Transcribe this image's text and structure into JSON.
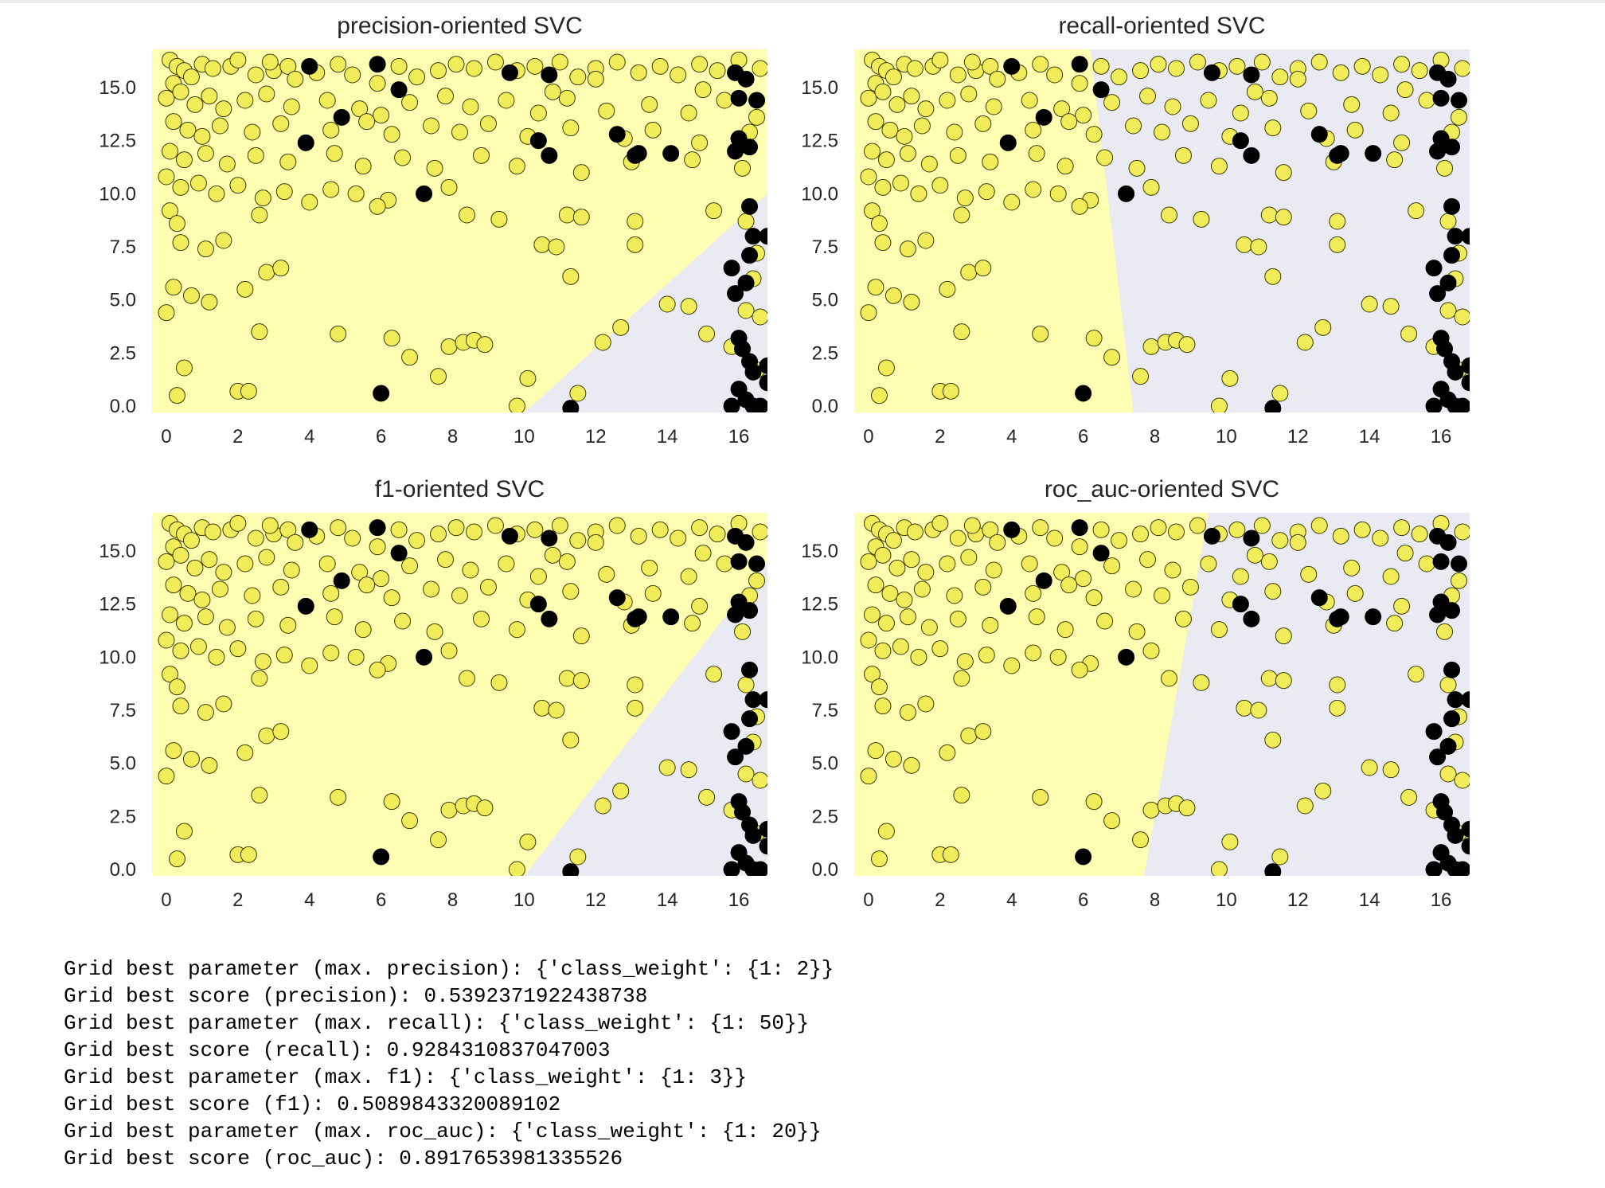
{
  "colors": {
    "positive_region": "#ffffb3",
    "negative_region": "#eaeaf2",
    "yellow_point": "#f0ec5a",
    "black_point": "#000000"
  },
  "chart_data": [
    {
      "type": "scatter",
      "title": "precision-oriented SVC",
      "xlim": [
        -0.4,
        16.8
      ],
      "ylim": [
        -0.3,
        16.8
      ],
      "xticks": [
        0,
        2,
        4,
        6,
        8,
        10,
        12,
        14,
        16
      ],
      "yticks": [
        0.0,
        2.5,
        5.0,
        7.5,
        10.0,
        12.5,
        15.0
      ],
      "grid": false,
      "decision_boundary": [
        [
          10.0,
          -0.3
        ],
        [
          16.8,
          10.0
        ]
      ]
    },
    {
      "type": "scatter",
      "title": "recall-oriented SVC",
      "xlim": [
        -0.4,
        16.8
      ],
      "ylim": [
        -0.3,
        16.8
      ],
      "xticks": [
        0,
        2,
        4,
        6,
        8,
        10,
        12,
        14,
        16
      ],
      "yticks": [
        0.0,
        2.5,
        5.0,
        7.5,
        10.0,
        12.5,
        15.0
      ],
      "grid": false,
      "decision_boundary": [
        [
          7.4,
          -0.3
        ],
        [
          6.2,
          16.8
        ]
      ]
    },
    {
      "type": "scatter",
      "title": "f1-oriented SVC",
      "xlim": [
        -0.4,
        16.8
      ],
      "ylim": [
        -0.3,
        16.8
      ],
      "xticks": [
        0,
        2,
        4,
        6,
        8,
        10,
        12,
        14,
        16
      ],
      "yticks": [
        0.0,
        2.5,
        5.0,
        7.5,
        10.0,
        12.5,
        15.0
      ],
      "grid": false,
      "decision_boundary": [
        [
          10.0,
          -0.3
        ],
        [
          16.8,
          14.5
        ]
      ]
    },
    {
      "type": "scatter",
      "title": "roc_auc-oriented SVC",
      "xlim": [
        -0.4,
        16.8
      ],
      "ylim": [
        -0.3,
        16.8
      ],
      "xticks": [
        0,
        2,
        4,
        6,
        8,
        10,
        12,
        14,
        16
      ],
      "yticks": [
        0.0,
        2.5,
        5.0,
        7.5,
        10.0,
        12.5,
        15.0
      ],
      "grid": false,
      "decision_boundary": [
        [
          7.7,
          -0.3
        ],
        [
          9.5,
          16.8
        ]
      ]
    }
  ],
  "scatter_points": {
    "yellow": [
      [
        0.1,
        16.3
      ],
      [
        0.3,
        16.0
      ],
      [
        0.5,
        15.8
      ],
      [
        0.2,
        15.2
      ],
      [
        0.7,
        15.5
      ],
      [
        1.0,
        16.1
      ],
      [
        1.3,
        15.9
      ],
      [
        1.8,
        16.0
      ],
      [
        2.0,
        16.3
      ],
      [
        2.5,
        15.6
      ],
      [
        3.0,
        15.8
      ],
      [
        3.4,
        16.0
      ],
      [
        4.2,
        15.7
      ],
      [
        4.8,
        16.1
      ],
      [
        5.2,
        15.6
      ],
      [
        6.5,
        16.0
      ],
      [
        7.0,
        15.5
      ],
      [
        7.6,
        15.8
      ],
      [
        8.1,
        16.1
      ],
      [
        8.6,
        15.9
      ],
      [
        9.2,
        16.2
      ],
      [
        9.8,
        15.8
      ],
      [
        10.3,
        16.0
      ],
      [
        11.0,
        16.2
      ],
      [
        11.5,
        15.5
      ],
      [
        12.0,
        15.9
      ],
      [
        12.6,
        16.2
      ],
      [
        13.2,
        15.7
      ],
      [
        13.8,
        16.0
      ],
      [
        14.3,
        15.6
      ],
      [
        14.9,
        16.1
      ],
      [
        15.4,
        15.8
      ],
      [
        16.0,
        16.3
      ],
      [
        16.6,
        15.9
      ],
      [
        0.0,
        14.5
      ],
      [
        0.4,
        14.8
      ],
      [
        0.8,
        14.2
      ],
      [
        1.2,
        14.6
      ],
      [
        1.6,
        14.0
      ],
      [
        2.2,
        14.4
      ],
      [
        2.8,
        14.7
      ],
      [
        3.5,
        14.1
      ],
      [
        4.5,
        14.4
      ],
      [
        5.4,
        14.0
      ],
      [
        6.0,
        13.7
      ],
      [
        6.8,
        14.3
      ],
      [
        7.8,
        14.6
      ],
      [
        8.5,
        14.1
      ],
      [
        9.5,
        14.4
      ],
      [
        10.4,
        13.8
      ],
      [
        11.2,
        14.5
      ],
      [
        12.3,
        13.9
      ],
      [
        13.5,
        14.2
      ],
      [
        14.6,
        13.8
      ],
      [
        15.6,
        14.4
      ],
      [
        16.5,
        13.6
      ],
      [
        0.2,
        13.4
      ],
      [
        0.6,
        13.0
      ],
      [
        1.0,
        12.7
      ],
      [
        1.5,
        13.2
      ],
      [
        2.4,
        12.9
      ],
      [
        3.2,
        13.3
      ],
      [
        4.6,
        13.0
      ],
      [
        5.6,
        13.4
      ],
      [
        6.3,
        12.8
      ],
      [
        7.4,
        13.2
      ],
      [
        8.2,
        12.9
      ],
      [
        9.0,
        13.3
      ],
      [
        10.1,
        12.7
      ],
      [
        11.3,
        13.1
      ],
      [
        12.8,
        12.6
      ],
      [
        13.6,
        13.0
      ],
      [
        14.9,
        12.4
      ],
      [
        16.3,
        12.9
      ],
      [
        0.1,
        12.0
      ],
      [
        0.5,
        11.6
      ],
      [
        1.1,
        11.9
      ],
      [
        1.7,
        11.4
      ],
      [
        2.5,
        11.8
      ],
      [
        3.4,
        11.5
      ],
      [
        4.7,
        11.9
      ],
      [
        5.5,
        11.3
      ],
      [
        6.6,
        11.7
      ],
      [
        7.5,
        11.2
      ],
      [
        8.8,
        11.8
      ],
      [
        9.8,
        11.3
      ],
      [
        11.6,
        11.0
      ],
      [
        13.0,
        11.5
      ],
      [
        14.7,
        11.6
      ],
      [
        16.1,
        11.2
      ],
      [
        0.0,
        10.8
      ],
      [
        0.4,
        10.3
      ],
      [
        0.9,
        10.5
      ],
      [
        1.4,
        10.0
      ],
      [
        2.0,
        10.4
      ],
      [
        2.7,
        9.8
      ],
      [
        3.3,
        10.1
      ],
      [
        4.0,
        9.6
      ],
      [
        4.6,
        10.2
      ],
      [
        5.3,
        10.0
      ],
      [
        6.2,
        9.7
      ],
      [
        7.9,
        10.3
      ],
      [
        0.1,
        9.2
      ],
      [
        0.3,
        8.6
      ],
      [
        2.6,
        9.0
      ],
      [
        5.9,
        9.4
      ],
      [
        8.4,
        9.0
      ],
      [
        9.3,
        8.8
      ],
      [
        11.2,
        9.0
      ],
      [
        11.6,
        8.9
      ],
      [
        13.1,
        8.7
      ],
      [
        15.3,
        9.2
      ],
      [
        16.2,
        8.7
      ],
      [
        0.4,
        7.7
      ],
      [
        1.1,
        7.4
      ],
      [
        1.6,
        7.8
      ],
      [
        10.5,
        7.6
      ],
      [
        10.9,
        7.5
      ],
      [
        13.1,
        7.6
      ],
      [
        16.5,
        7.2
      ],
      [
        0.2,
        5.6
      ],
      [
        0.7,
        5.2
      ],
      [
        1.2,
        4.9
      ],
      [
        2.2,
        5.5
      ],
      [
        2.8,
        6.3
      ],
      [
        3.2,
        6.5
      ],
      [
        11.3,
        6.1
      ],
      [
        14.0,
        4.8
      ],
      [
        14.6,
        4.7
      ],
      [
        16.2,
        4.5
      ],
      [
        0.0,
        4.4
      ],
      [
        0.5,
        1.8
      ],
      [
        0.3,
        0.5
      ],
      [
        2.0,
        0.7
      ],
      [
        2.3,
        0.7
      ],
      [
        2.6,
        3.5
      ],
      [
        4.8,
        3.4
      ],
      [
        6.3,
        3.2
      ],
      [
        6.8,
        2.3
      ],
      [
        7.6,
        1.4
      ],
      [
        7.9,
        2.8
      ],
      [
        8.3,
        3.0
      ],
      [
        8.6,
        3.1
      ],
      [
        8.9,
        2.9
      ],
      [
        10.1,
        1.3
      ],
      [
        11.5,
        0.6
      ],
      [
        12.2,
        3.0
      ],
      [
        12.7,
        3.7
      ],
      [
        15.1,
        3.4
      ],
      [
        16.5,
        1.7
      ],
      [
        9.8,
        0.0
      ],
      [
        15.8,
        2.8
      ],
      [
        16.6,
        4.2
      ],
      [
        16.4,
        6.0
      ],
      [
        12.0,
        15.4
      ],
      [
        5.9,
        15.2
      ],
      [
        3.6,
        15.4
      ],
      [
        2.9,
        16.2
      ],
      [
        10.8,
        14.8
      ],
      [
        15.0,
        14.9
      ]
    ],
    "black": [
      [
        4.0,
        16.0
      ],
      [
        5.9,
        16.1
      ],
      [
        9.6,
        15.7
      ],
      [
        10.7,
        15.6
      ],
      [
        6.5,
        14.9
      ],
      [
        16.2,
        15.4
      ],
      [
        15.9,
        15.7
      ],
      [
        16.5,
        14.4
      ],
      [
        16.0,
        14.5
      ],
      [
        4.9,
        13.6
      ],
      [
        3.9,
        12.4
      ],
      [
        10.4,
        12.5
      ],
      [
        12.6,
        12.8
      ],
      [
        10.7,
        11.8
      ],
      [
        13.2,
        11.9
      ],
      [
        13.1,
        11.8
      ],
      [
        14.1,
        11.9
      ],
      [
        15.9,
        12.0
      ],
      [
        16.3,
        12.2
      ],
      [
        16.0,
        12.6
      ],
      [
        7.2,
        10.0
      ],
      [
        16.3,
        9.4
      ],
      [
        16.4,
        8.0
      ],
      [
        16.8,
        8.0
      ],
      [
        16.3,
        7.1
      ],
      [
        15.8,
        6.5
      ],
      [
        16.2,
        5.8
      ],
      [
        15.9,
        5.3
      ],
      [
        16.0,
        3.2
      ],
      [
        16.1,
        2.7
      ],
      [
        16.3,
        2.1
      ],
      [
        16.8,
        1.9
      ],
      [
        16.4,
        1.6
      ],
      [
        16.8,
        1.1
      ],
      [
        16.0,
        0.8
      ],
      [
        16.2,
        0.3
      ],
      [
        15.8,
        0.0
      ],
      [
        16.4,
        0.0
      ],
      [
        16.6,
        0.0
      ],
      [
        6.0,
        0.6
      ],
      [
        11.3,
        -0.1
      ]
    ]
  },
  "output_lines": [
    "Grid best parameter (max. precision): {'class_weight': {1: 2}}",
    "Grid best score (precision): 0.5392371922438738",
    "Grid best parameter (max. recall): {'class_weight': {1: 50}}",
    "Grid best score (recall): 0.9284310837047003",
    "Grid best parameter (max. f1): {'class_weight': {1: 3}}",
    "Grid best score (f1): 0.5089843320089102",
    "Grid best parameter (max. roc_auc): {'class_weight': {1: 20}}",
    "Grid best score (roc_auc): 0.8917653981335526"
  ]
}
